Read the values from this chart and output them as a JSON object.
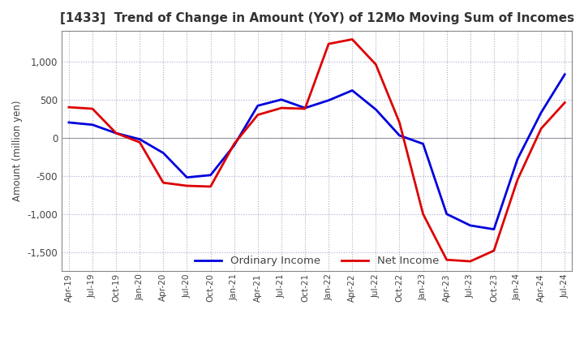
{
  "title": "[1433]  Trend of Change in Amount (YoY) of 12Mo Moving Sum of Incomes",
  "ylabel": "Amount (million yen)",
  "x_labels": [
    "Apr-19",
    "Jul-19",
    "Oct-19",
    "Jan-20",
    "Apr-20",
    "Jul-20",
    "Oct-20",
    "Jan-21",
    "Apr-21",
    "Jul-21",
    "Oct-21",
    "Jan-22",
    "Apr-22",
    "Jul-22",
    "Oct-22",
    "Jan-23",
    "Apr-23",
    "Jul-23",
    "Oct-23",
    "Jan-24",
    "Apr-24",
    "Jul-24"
  ],
  "ordinary_income": [
    200,
    170,
    60,
    -20,
    -200,
    -520,
    -490,
    -100,
    420,
    500,
    390,
    490,
    620,
    370,
    30,
    -80,
    -1000,
    -1150,
    -1200,
    -280,
    330,
    830
  ],
  "net_income": [
    400,
    380,
    60,
    -60,
    -590,
    -630,
    -640,
    -80,
    300,
    390,
    380,
    1230,
    1290,
    960,
    200,
    -1000,
    -1600,
    -1620,
    -1480,
    -550,
    120,
    460
  ],
  "ordinary_color": "#0000dd",
  "net_color": "#dd0000",
  "ylim": [
    -1750,
    1400
  ],
  "yticks": [
    -1500,
    -1000,
    -500,
    0,
    500,
    1000
  ],
  "grid_color": "#aaaacc",
  "background_color": "#ffffff",
  "legend_ordinary": "Ordinary Income",
  "legend_net": "Net Income"
}
